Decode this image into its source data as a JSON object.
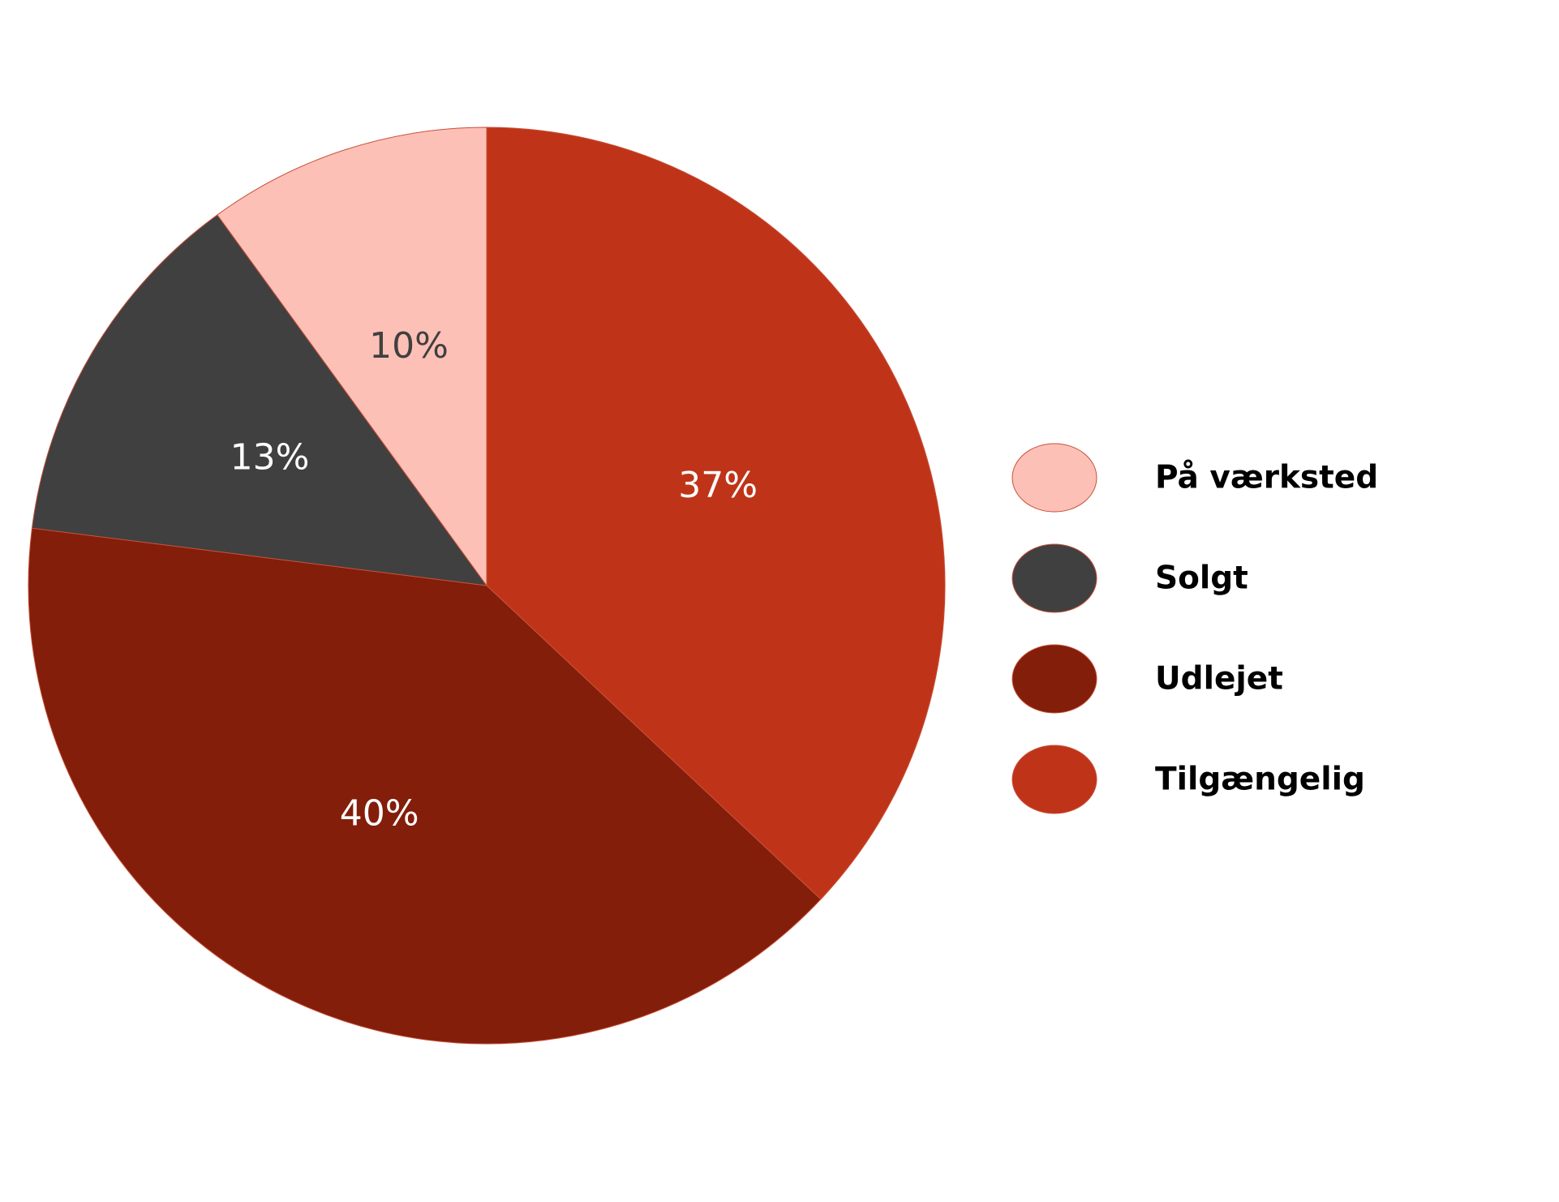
{
  "chart_data": {
    "type": "pie",
    "title": "",
    "slices": [
      {
        "label": "Tilgængelig",
        "value": 37,
        "value_label": "37%",
        "color": "#bf3418",
        "label_color": "#ffffff"
      },
      {
        "label": "Udlejet",
        "value": 40,
        "value_label": "40%",
        "color": "#821e0a",
        "label_color": "#ffffff"
      },
      {
        "label": "Solgt",
        "value": 13,
        "value_label": "13%",
        "color": "#404040",
        "label_color": "#ffffff"
      },
      {
        "label": "På værksted",
        "value": 10,
        "value_label": "10%",
        "color": "#fdc0b7",
        "label_color": "#404040"
      }
    ],
    "legend": {
      "placement": "right",
      "order": [
        "På værksted",
        "Solgt",
        "Udlejet",
        "Tilgængelig"
      ]
    }
  }
}
